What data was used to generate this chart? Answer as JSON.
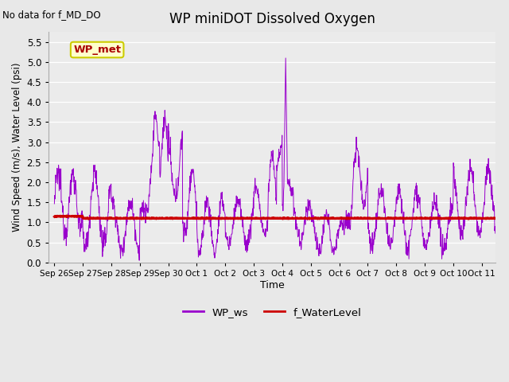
{
  "title": "WP miniDOT Dissolved Oxygen",
  "no_data_text": "No data for f_MD_DO",
  "ylabel": "Wind Speed (m/s), Water Level (psi)",
  "xlabel": "Time",
  "ylim": [
    0.0,
    5.75
  ],
  "yticks": [
    0.0,
    0.5,
    1.0,
    1.5,
    2.0,
    2.5,
    3.0,
    3.5,
    4.0,
    4.5,
    5.0,
    5.5
  ],
  "ws_color": "#9900CC",
  "wl_color": "#CC0000",
  "fig_bg_color": "#E8E8E8",
  "plot_bg_color": "#EBEBEB",
  "grid_color": "#FFFFFF",
  "legend_label_ws": "WP_ws",
  "legend_label_wl": "f_WaterLevel",
  "annotation_text": "WP_met",
  "annotation_bg": "#FFFFCC",
  "annotation_border": "#CCCC00",
  "water_level_value": 1.1,
  "x_tick_positions": [
    0,
    1,
    2,
    3,
    4,
    5,
    6,
    7,
    8,
    9,
    10,
    11,
    12,
    13,
    14,
    15
  ],
  "x_tick_labels": [
    "Sep 26",
    "Sep 27",
    "Sep 28",
    "Sep 29",
    "Sep 30",
    "Oct 1",
    "Oct 2",
    "Oct 3",
    "Oct 4",
    "Oct 5",
    "Oct 6",
    "Oct 7",
    "Oct 8",
    "Oct 9",
    "Oct 10",
    "Oct 11"
  ],
  "xlim": [
    -0.2,
    15.5
  ],
  "figsize": [
    6.4,
    4.8
  ],
  "dpi": 100
}
